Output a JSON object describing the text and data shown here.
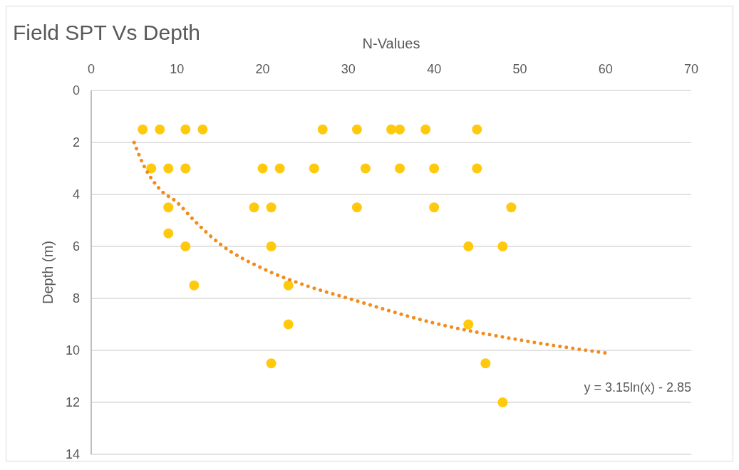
{
  "chart_data": {
    "type": "scatter",
    "title": "Field SPT Vs Depth",
    "xlabel": "N-Values",
    "ylabel": "Depth (m)",
    "xlim": [
      0,
      70
    ],
    "xticks": [
      0,
      10,
      20,
      30,
      40,
      50,
      60,
      70
    ],
    "ylim": [
      14,
      0
    ],
    "yticks": [
      0,
      2,
      4,
      6,
      8,
      10,
      12,
      14
    ],
    "grid": "y",
    "marker": "circle",
    "annotations": [
      "y = 3.15ln(x) - 2.85"
    ],
    "series": [
      {
        "color": "#ffc90e",
        "x": [
          6,
          8,
          11,
          13,
          27,
          31,
          35,
          36,
          39,
          45,
          7,
          9,
          11,
          20,
          22,
          26,
          32,
          36,
          40,
          45,
          9,
          19,
          21,
          31,
          40,
          49,
          9,
          11,
          21,
          44,
          48,
          12,
          23,
          23,
          44,
          21,
          46,
          48
        ],
        "values": [
          1.5,
          1.5,
          1.5,
          1.5,
          1.5,
          1.5,
          1.5,
          1.5,
          1.5,
          1.5,
          3,
          3,
          3,
          3,
          3,
          3,
          3,
          3,
          3,
          3,
          4.5,
          4.5,
          4.5,
          4.5,
          4.5,
          4.5,
          5.5,
          6,
          6,
          6,
          6,
          7.5,
          7.5,
          9,
          9,
          10.5,
          10.5,
          12
        ]
      },
      {
        "type": "line",
        "color": "#f28c1c",
        "marker": "none",
        "line_style": "dotted",
        "x": [
          5,
          6,
          8,
          10,
          12,
          15,
          20,
          25,
          30,
          40,
          50,
          60
        ],
        "values": [
          2.0,
          2.8,
          3.8,
          4.3,
          5.0,
          5.9,
          6.85,
          7.5,
          8.0,
          8.95,
          9.6,
          10.1
        ]
      }
    ]
  }
}
